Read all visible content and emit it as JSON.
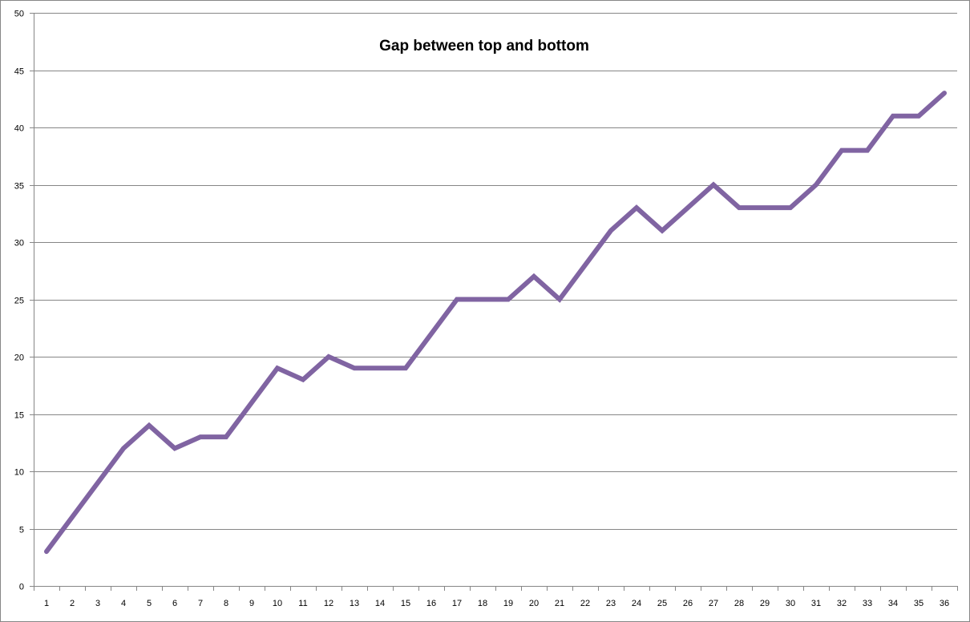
{
  "chart_data": {
    "type": "line",
    "title": "Gap between top and bottom",
    "xlabel": "",
    "ylabel": "",
    "categories": [
      "1",
      "2",
      "3",
      "4",
      "5",
      "6",
      "7",
      "8",
      "9",
      "10",
      "11",
      "12",
      "13",
      "14",
      "15",
      "16",
      "17",
      "18",
      "19",
      "20",
      "21",
      "22",
      "23",
      "24",
      "25",
      "26",
      "27",
      "28",
      "29",
      "30",
      "31",
      "32",
      "33",
      "34",
      "35",
      "36"
    ],
    "series": [
      {
        "values": [
          3,
          6,
          9,
          12,
          14,
          12,
          13,
          13,
          16,
          19,
          18,
          20,
          19,
          19,
          19,
          22,
          25,
          25,
          25,
          27,
          25,
          28,
          31,
          33,
          31,
          33,
          35,
          33,
          33,
          33,
          35,
          38,
          38,
          41,
          41,
          43
        ]
      }
    ],
    "ylim": [
      0,
      50
    ],
    "yticks": [
      0,
      5,
      10,
      15,
      20,
      25,
      30,
      35,
      40,
      45,
      50
    ],
    "grid": "horizontal",
    "legend": "none",
    "colors": {
      "line": "#8064A2",
      "grid": "#868686",
      "axis": "#868686",
      "border": "#868686"
    }
  }
}
